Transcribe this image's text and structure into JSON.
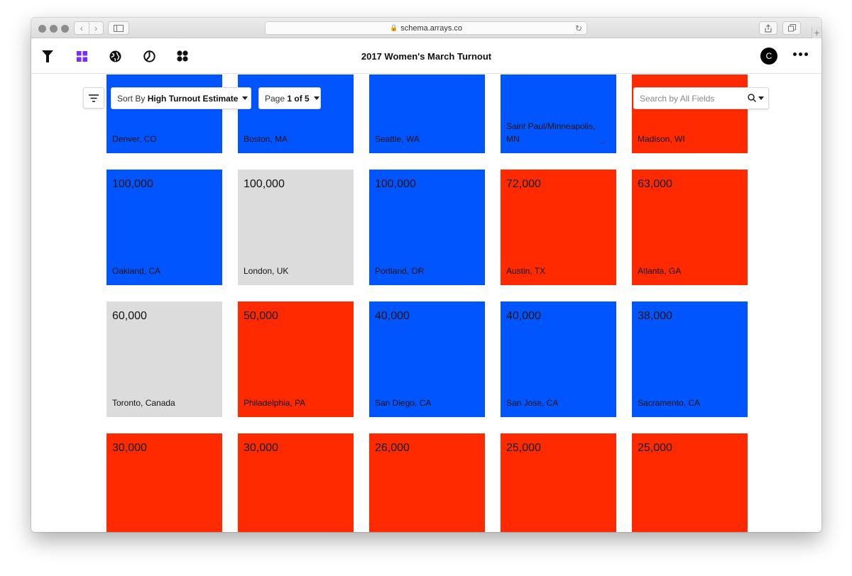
{
  "browser": {
    "url": "schema.arrays.co"
  },
  "app": {
    "title": "2017 Women's March Turnout",
    "avatar_initial": "C",
    "accent": "#7a2bff"
  },
  "toolbar": {
    "sort_prefix": "Sort By",
    "sort_value": "High Turnout Estimate",
    "page_prefix": "Page",
    "page_value": "1 of 5",
    "search_placeholder": "Search by All Fields"
  },
  "colors": {
    "blue": "#0055ff",
    "red": "#ff2a00",
    "gray": "#dcdcdc"
  },
  "cards": [
    {
      "value": "",
      "place": "Denver, CO",
      "color": "blue"
    },
    {
      "value": "",
      "place": "Boston, MA",
      "color": "blue"
    },
    {
      "value": "",
      "place": "Seattle, WA",
      "color": "blue"
    },
    {
      "value": "",
      "place": "Saint Paul/Minneapolis, MN",
      "color": "blue",
      "truncated": "..."
    },
    {
      "value": "",
      "place": "Madison, WI",
      "color": "red"
    },
    {
      "value": "100,000",
      "place": "Oakland, CA",
      "color": "blue"
    },
    {
      "value": "100,000",
      "place": "London, UK",
      "color": "gray"
    },
    {
      "value": "100,000",
      "place": "Portland, OR",
      "color": "blue"
    },
    {
      "value": "72,000",
      "place": "Austin, TX",
      "color": "red"
    },
    {
      "value": "63,000",
      "place": "Atlanta, GA",
      "color": "red"
    },
    {
      "value": "60,000",
      "place": "Toronto, Canada",
      "color": "gray"
    },
    {
      "value": "50,000",
      "place": "Philadelphia, PA",
      "color": "red"
    },
    {
      "value": "40,000",
      "place": "San Diego, CA",
      "color": "blue"
    },
    {
      "value": "40,000",
      "place": "San Jose, CA",
      "color": "blue"
    },
    {
      "value": "38,000",
      "place": "Sacramento, CA",
      "color": "blue"
    },
    {
      "value": "30,000",
      "place": "",
      "color": "red"
    },
    {
      "value": "30,000",
      "place": "",
      "color": "red"
    },
    {
      "value": "26,000",
      "place": "",
      "color": "red"
    },
    {
      "value": "25,000",
      "place": "",
      "color": "red"
    },
    {
      "value": "25,000",
      "place": "",
      "color": "red"
    }
  ]
}
